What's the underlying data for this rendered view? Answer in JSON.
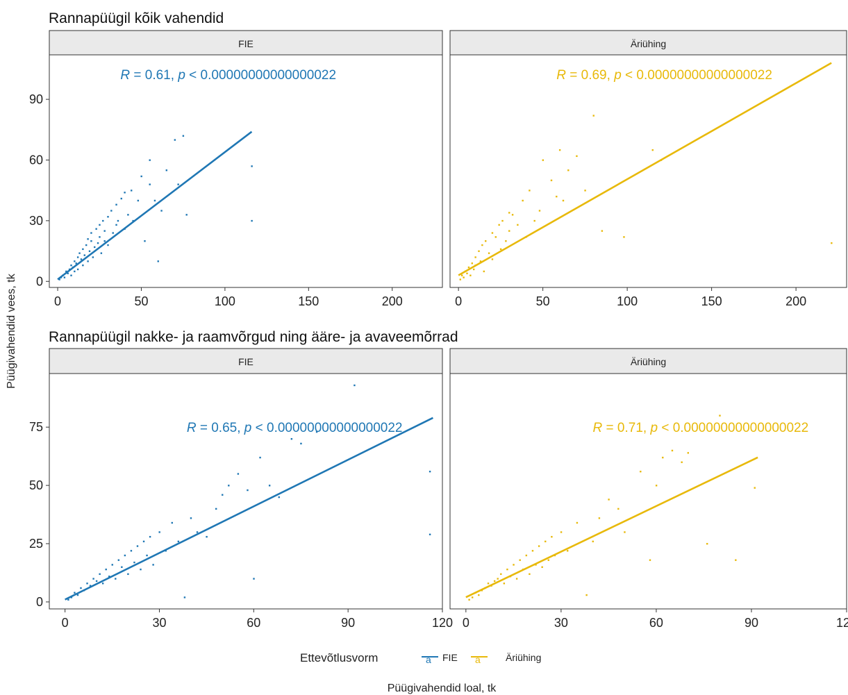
{
  "colors": {
    "FIE": "#1f77b4",
    "Äriühing": "#e8b90a",
    "strip_fill": "#eaeaea",
    "axis_text": "#222222"
  },
  "y_axis_label": "Püügivahendid vees, tk",
  "x_axis_label": "Püügivahendid loal, tk",
  "legend": {
    "title": "Ettevõtlusvorm",
    "keys": [
      "FIE",
      "Äriühing"
    ],
    "key_glyph": "a",
    "position": "bottom"
  },
  "chart_data": [
    {
      "type": "scatter",
      "title": "Rannapüügil kõik vahendid",
      "xlim": [
        -5,
        230
      ],
      "ylim": [
        -3,
        112
      ],
      "x_ticks": [
        "0",
        "50",
        "100",
        "150",
        "200"
      ],
      "x_tick_values": [
        0,
        50,
        100,
        150,
        200
      ],
      "y_ticks": [
        "0",
        "30",
        "60",
        "90"
      ],
      "y_tick_values": [
        0,
        30,
        60,
        90
      ],
      "grid": false,
      "panels": [
        {
          "strip": "FIE",
          "series": "FIE",
          "annotation": {
            "r_label": "R",
            "r_text": " = 0.61, ",
            "p_label": "p",
            "p_text": " < 0.00000000000000022",
            "x": 102,
            "y": 100
          },
          "fit_line": {
            "x": [
              0,
              116
            ],
            "y": [
              1,
              74
            ]
          },
          "points": {
            "x": [
              1,
              2,
              3,
              4,
              5,
              6,
              7,
              8,
              8,
              9,
              10,
              10,
              11,
              12,
              12,
              13,
              14,
              15,
              15,
              16,
              17,
              18,
              18,
              19,
              20,
              20,
              21,
              22,
              23,
              24,
              25,
              25,
              26,
              27,
              28,
              28,
              30,
              30,
              32,
              33,
              35,
              35,
              36,
              38,
              40,
              40,
              42,
              44,
              45,
              48,
              50,
              52,
              55,
              55,
              58,
              60,
              62,
              65,
              70,
              72,
              75,
              77,
              116,
              116
            ],
            "y": [
              1,
              2,
              3,
              2,
              5,
              4,
              6,
              3,
              8,
              7,
              10,
              5,
              9,
              12,
              6,
              14,
              11,
              16,
              8,
              13,
              18,
              10,
              21,
              15,
              20,
              24,
              12,
              17,
              26,
              19,
              22,
              28,
              14,
              30,
              20,
              25,
              32,
              18,
              35,
              24,
              38,
              28,
              30,
              41,
              26,
              44,
              33,
              45,
              30,
              40,
              52,
              20,
              48,
              60,
              40,
              10,
              35,
              55,
              70,
              48,
              72,
              33,
              57,
              30
            ]
          }
        },
        {
          "strip": "Äriühing",
          "series": "Äriühing",
          "annotation": {
            "r_label": "R",
            "r_text": " = 0.69, ",
            "p_label": "p",
            "p_text": " < 0.00000000000000022",
            "x": 122,
            "y": 100
          },
          "fit_line": {
            "x": [
              0,
              221
            ],
            "y": [
              3,
              108
            ]
          },
          "points": {
            "x": [
              1,
              2,
              3,
              4,
              5,
              6,
              7,
              8,
              9,
              10,
              10,
              12,
              13,
              14,
              15,
              16,
              18,
              20,
              20,
              22,
              24,
              25,
              26,
              28,
              30,
              30,
              32,
              35,
              38,
              40,
              42,
              45,
              48,
              50,
              55,
              58,
              60,
              62,
              65,
              70,
              75,
              80,
              85,
              98,
              115,
              120,
              221
            ],
            "y": [
              1,
              3,
              2,
              5,
              4,
              7,
              3,
              9,
              6,
              12,
              8,
              15,
              10,
              18,
              5,
              20,
              14,
              24,
              11,
              22,
              28,
              16,
              30,
              20,
              34,
              25,
              33,
              28,
              40,
              22,
              45,
              30,
              35,
              60,
              50,
              42,
              65,
              40,
              55,
              62,
              45,
              82,
              25,
              22,
              65,
              60,
              19
            ]
          }
        }
      ]
    },
    {
      "type": "scatter",
      "title": "Rannapüügil nakke- ja raamvõrgud ning ääre- ja avaveemõrrad",
      "xlim": [
        -5,
        120
      ],
      "ylim": [
        -3,
        98
      ],
      "x_ticks": [
        "0",
        "30",
        "60",
        "90",
        "120"
      ],
      "x_tick_values": [
        0,
        30,
        60,
        90,
        120
      ],
      "y_ticks": [
        "0",
        "25",
        "50",
        "75"
      ],
      "y_tick_values": [
        0,
        25,
        50,
        75
      ],
      "grid": false,
      "panels": [
        {
          "strip": "FIE",
          "series": "FIE",
          "annotation": {
            "r_label": "R",
            "r_text": " = 0.65, ",
            "p_label": "p",
            "p_text": " < 0.00000000000000022",
            "x": 73,
            "y": 73
          },
          "fit_line": {
            "x": [
              0,
              117
            ],
            "y": [
              1,
              79
            ]
          },
          "points": {
            "x": [
              1,
              2,
              3,
              4,
              5,
              6,
              7,
              8,
              9,
              10,
              11,
              12,
              13,
              14,
              15,
              16,
              17,
              18,
              19,
              20,
              21,
              22,
              23,
              24,
              25,
              26,
              27,
              28,
              30,
              32,
              34,
              36,
              38,
              40,
              42,
              45,
              48,
              50,
              52,
              55,
              58,
              60,
              62,
              65,
              68,
              72,
              75,
              80,
              92,
              116,
              116
            ],
            "y": [
              1,
              2,
              4,
              3,
              6,
              5,
              8,
              7,
              10,
              9,
              12,
              8,
              14,
              11,
              16,
              10,
              18,
              15,
              20,
              12,
              22,
              17,
              24,
              14,
              26,
              20,
              28,
              16,
              30,
              22,
              34,
              26,
              2,
              36,
              30,
              28,
              40,
              46,
              50,
              55,
              48,
              10,
              62,
              50,
              45,
              70,
              68,
              73,
              93,
              56,
              29
            ]
          }
        },
        {
          "strip": "Äriühing",
          "series": "Äriühing",
          "annotation": {
            "r_label": "R",
            "r_text": " = 0.71, ",
            "p_label": "p",
            "p_text": " < 0.00000000000000022",
            "x": 74,
            "y": 73
          },
          "fit_line": {
            "x": [
              0,
              92
            ],
            "y": [
              2,
              62
            ]
          },
          "points": {
            "x": [
              1,
              2,
              3,
              4,
              5,
              6,
              7,
              8,
              9,
              10,
              11,
              12,
              13,
              14,
              15,
              16,
              17,
              18,
              19,
              20,
              21,
              22,
              23,
              24,
              25,
              26,
              27,
              28,
              30,
              32,
              35,
              38,
              40,
              42,
              45,
              48,
              50,
              55,
              58,
              60,
              62,
              65,
              68,
              70,
              76,
              80,
              85,
              91
            ],
            "y": [
              1,
              2,
              4,
              3,
              5,
              6,
              8,
              7,
              9,
              10,
              12,
              8,
              14,
              11,
              16,
              10,
              18,
              14,
              20,
              12,
              22,
              16,
              24,
              15,
              26,
              18,
              28,
              20,
              30,
              22,
              34,
              3,
              26,
              36,
              44,
              40,
              30,
              56,
              18,
              50,
              62,
              65,
              60,
              64,
              25,
              80,
              18,
              49
            ]
          }
        }
      ]
    }
  ]
}
